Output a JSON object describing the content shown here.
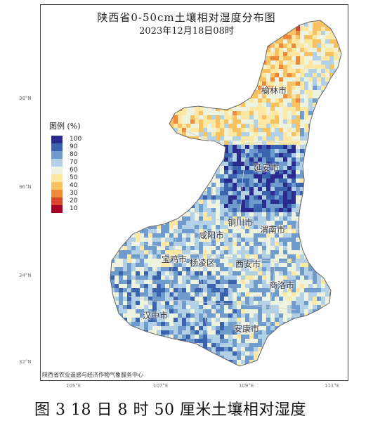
{
  "title": "陕西省0-50cm土壤相对湿度分布图",
  "subtitle": "2023年12月18日08时",
  "legend": {
    "title": "图例 (%)",
    "items": [
      {
        "label": "100",
        "color": "#2b2b8f"
      },
      {
        "label": "90",
        "color": "#3a63b0"
      },
      {
        "label": "80",
        "color": "#6f9ccc"
      },
      {
        "label": "70",
        "color": "#b3d1e6"
      },
      {
        "label": "60",
        "color": "#eef3df"
      },
      {
        "label": "50",
        "color": "#fde8a3"
      },
      {
        "label": "40",
        "color": "#f8c262"
      },
      {
        "label": "30",
        "color": "#ef8a3c"
      },
      {
        "label": "20",
        "color": "#d9462c"
      },
      {
        "label": "10",
        "color": "#a50026"
      }
    ]
  },
  "cities": [
    {
      "name": "榆林市"
    },
    {
      "name": "延安市"
    },
    {
      "name": "铜川市"
    },
    {
      "name": "咸阳市"
    },
    {
      "name": "渭南市"
    },
    {
      "name": "宝鸡市"
    },
    {
      "name": "杨凌区"
    },
    {
      "name": "西安市"
    },
    {
      "name": "商洛市"
    },
    {
      "name": "汉中市"
    },
    {
      "name": "安康市"
    }
  ],
  "lat_ticks": [
    "38°N",
    "36°N",
    "34°N",
    "32°N"
  ],
  "lon_ticks": [
    "105°E",
    "107°E",
    "109°E",
    "111°E"
  ],
  "credit": "陕西省农业遥感与经济作物气象服务中心",
  "caption": "图 3 18 日 8 时 50 厘米土壤相对湿度"
}
